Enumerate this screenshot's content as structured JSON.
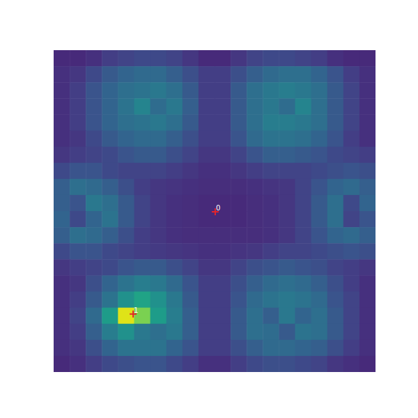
{
  "chart_data": {
    "type": "heatmap",
    "tick_labels": false,
    "xlim": [
      0,
      20
    ],
    "ylim": [
      20,
      0
    ],
    "color_range": [
      0,
      1
    ],
    "cells": [
      [
        0.12,
        0.12,
        0.14,
        0.18,
        0.2,
        0.22,
        0.22,
        0.2,
        0.16,
        0.12,
        0.12,
        0.16,
        0.2,
        0.22,
        0.22,
        0.2,
        0.18,
        0.14,
        0.12,
        0.12
      ],
      [
        0.14,
        0.16,
        0.22,
        0.28,
        0.32,
        0.34,
        0.34,
        0.3,
        0.24,
        0.18,
        0.18,
        0.24,
        0.3,
        0.34,
        0.36,
        0.36,
        0.32,
        0.26,
        0.18,
        0.14
      ],
      [
        0.14,
        0.18,
        0.26,
        0.32,
        0.36,
        0.38,
        0.4,
        0.36,
        0.28,
        0.18,
        0.18,
        0.28,
        0.36,
        0.4,
        0.42,
        0.4,
        0.36,
        0.28,
        0.2,
        0.14
      ],
      [
        0.14,
        0.18,
        0.26,
        0.32,
        0.38,
        0.45,
        0.35,
        0.4,
        0.3,
        0.18,
        0.18,
        0.28,
        0.36,
        0.4,
        0.35,
        0.45,
        0.36,
        0.28,
        0.2,
        0.14
      ],
      [
        0.14,
        0.18,
        0.26,
        0.32,
        0.36,
        0.38,
        0.4,
        0.36,
        0.28,
        0.18,
        0.18,
        0.28,
        0.36,
        0.42,
        0.42,
        0.4,
        0.36,
        0.28,
        0.2,
        0.14
      ],
      [
        0.14,
        0.16,
        0.22,
        0.28,
        0.32,
        0.34,
        0.34,
        0.3,
        0.24,
        0.18,
        0.18,
        0.26,
        0.34,
        0.38,
        0.38,
        0.36,
        0.32,
        0.26,
        0.18,
        0.14
      ],
      [
        0.16,
        0.18,
        0.2,
        0.22,
        0.26,
        0.28,
        0.28,
        0.24,
        0.2,
        0.16,
        0.16,
        0.2,
        0.26,
        0.3,
        0.3,
        0.28,
        0.26,
        0.22,
        0.2,
        0.18
      ],
      [
        0.22,
        0.26,
        0.26,
        0.22,
        0.2,
        0.2,
        0.2,
        0.18,
        0.16,
        0.14,
        0.14,
        0.16,
        0.18,
        0.2,
        0.2,
        0.2,
        0.22,
        0.24,
        0.26,
        0.24
      ],
      [
        0.3,
        0.36,
        0.34,
        0.3,
        0.24,
        0.18,
        0.16,
        0.15,
        0.14,
        0.13,
        0.13,
        0.13,
        0.14,
        0.15,
        0.16,
        0.2,
        0.26,
        0.32,
        0.34,
        0.3
      ],
      [
        0.3,
        0.26,
        0.4,
        0.36,
        0.28,
        0.2,
        0.16,
        0.14,
        0.13,
        0.12,
        0.12,
        0.12,
        0.13,
        0.14,
        0.16,
        0.2,
        0.28,
        0.36,
        0.22,
        0.32
      ],
      [
        0.32,
        0.22,
        0.32,
        0.38,
        0.28,
        0.2,
        0.16,
        0.14,
        0.13,
        0.12,
        0.12,
        0.12,
        0.13,
        0.14,
        0.16,
        0.2,
        0.28,
        0.36,
        0.2,
        0.26
      ],
      [
        0.3,
        0.36,
        0.34,
        0.3,
        0.24,
        0.18,
        0.16,
        0.14,
        0.13,
        0.13,
        0.13,
        0.13,
        0.13,
        0.14,
        0.16,
        0.2,
        0.26,
        0.32,
        0.34,
        0.3
      ],
      [
        0.22,
        0.26,
        0.26,
        0.22,
        0.2,
        0.18,
        0.17,
        0.16,
        0.15,
        0.14,
        0.14,
        0.15,
        0.16,
        0.18,
        0.2,
        0.2,
        0.22,
        0.24,
        0.26,
        0.24
      ],
      [
        0.16,
        0.18,
        0.2,
        0.22,
        0.26,
        0.28,
        0.28,
        0.24,
        0.2,
        0.16,
        0.16,
        0.2,
        0.24,
        0.26,
        0.28,
        0.26,
        0.24,
        0.2,
        0.18,
        0.16
      ],
      [
        0.14,
        0.16,
        0.24,
        0.32,
        0.38,
        0.42,
        0.4,
        0.34,
        0.26,
        0.18,
        0.18,
        0.24,
        0.3,
        0.34,
        0.36,
        0.34,
        0.3,
        0.24,
        0.18,
        0.14
      ],
      [
        0.14,
        0.18,
        0.28,
        0.38,
        0.5,
        0.58,
        0.5,
        0.4,
        0.28,
        0.18,
        0.18,
        0.26,
        0.34,
        0.38,
        0.4,
        0.38,
        0.34,
        0.26,
        0.2,
        0.14
      ],
      [
        0.14,
        0.2,
        0.34,
        0.55,
        0.95,
        0.8,
        0.55,
        0.42,
        0.3,
        0.18,
        0.18,
        0.28,
        0.36,
        0.3,
        0.4,
        0.32,
        0.36,
        0.28,
        0.2,
        0.14
      ],
      [
        0.14,
        0.18,
        0.3,
        0.42,
        0.5,
        0.4,
        0.36,
        0.4,
        0.3,
        0.18,
        0.18,
        0.28,
        0.36,
        0.35,
        0.28,
        0.38,
        0.36,
        0.28,
        0.2,
        0.14
      ],
      [
        0.14,
        0.16,
        0.24,
        0.32,
        0.38,
        0.38,
        0.38,
        0.32,
        0.26,
        0.18,
        0.18,
        0.24,
        0.3,
        0.34,
        0.34,
        0.32,
        0.3,
        0.24,
        0.18,
        0.14
      ],
      [
        0.12,
        0.14,
        0.18,
        0.22,
        0.24,
        0.26,
        0.26,
        0.22,
        0.18,
        0.14,
        0.14,
        0.18,
        0.22,
        0.24,
        0.24,
        0.22,
        0.2,
        0.16,
        0.14,
        0.12
      ]
    ],
    "points": {
      "x": [
        10.04,
        4.94
      ],
      "y": [
        10.04,
        16.4
      ],
      "labels": [
        "0",
        "1"
      ],
      "marker": "plus",
      "color": "#e3242b"
    }
  }
}
